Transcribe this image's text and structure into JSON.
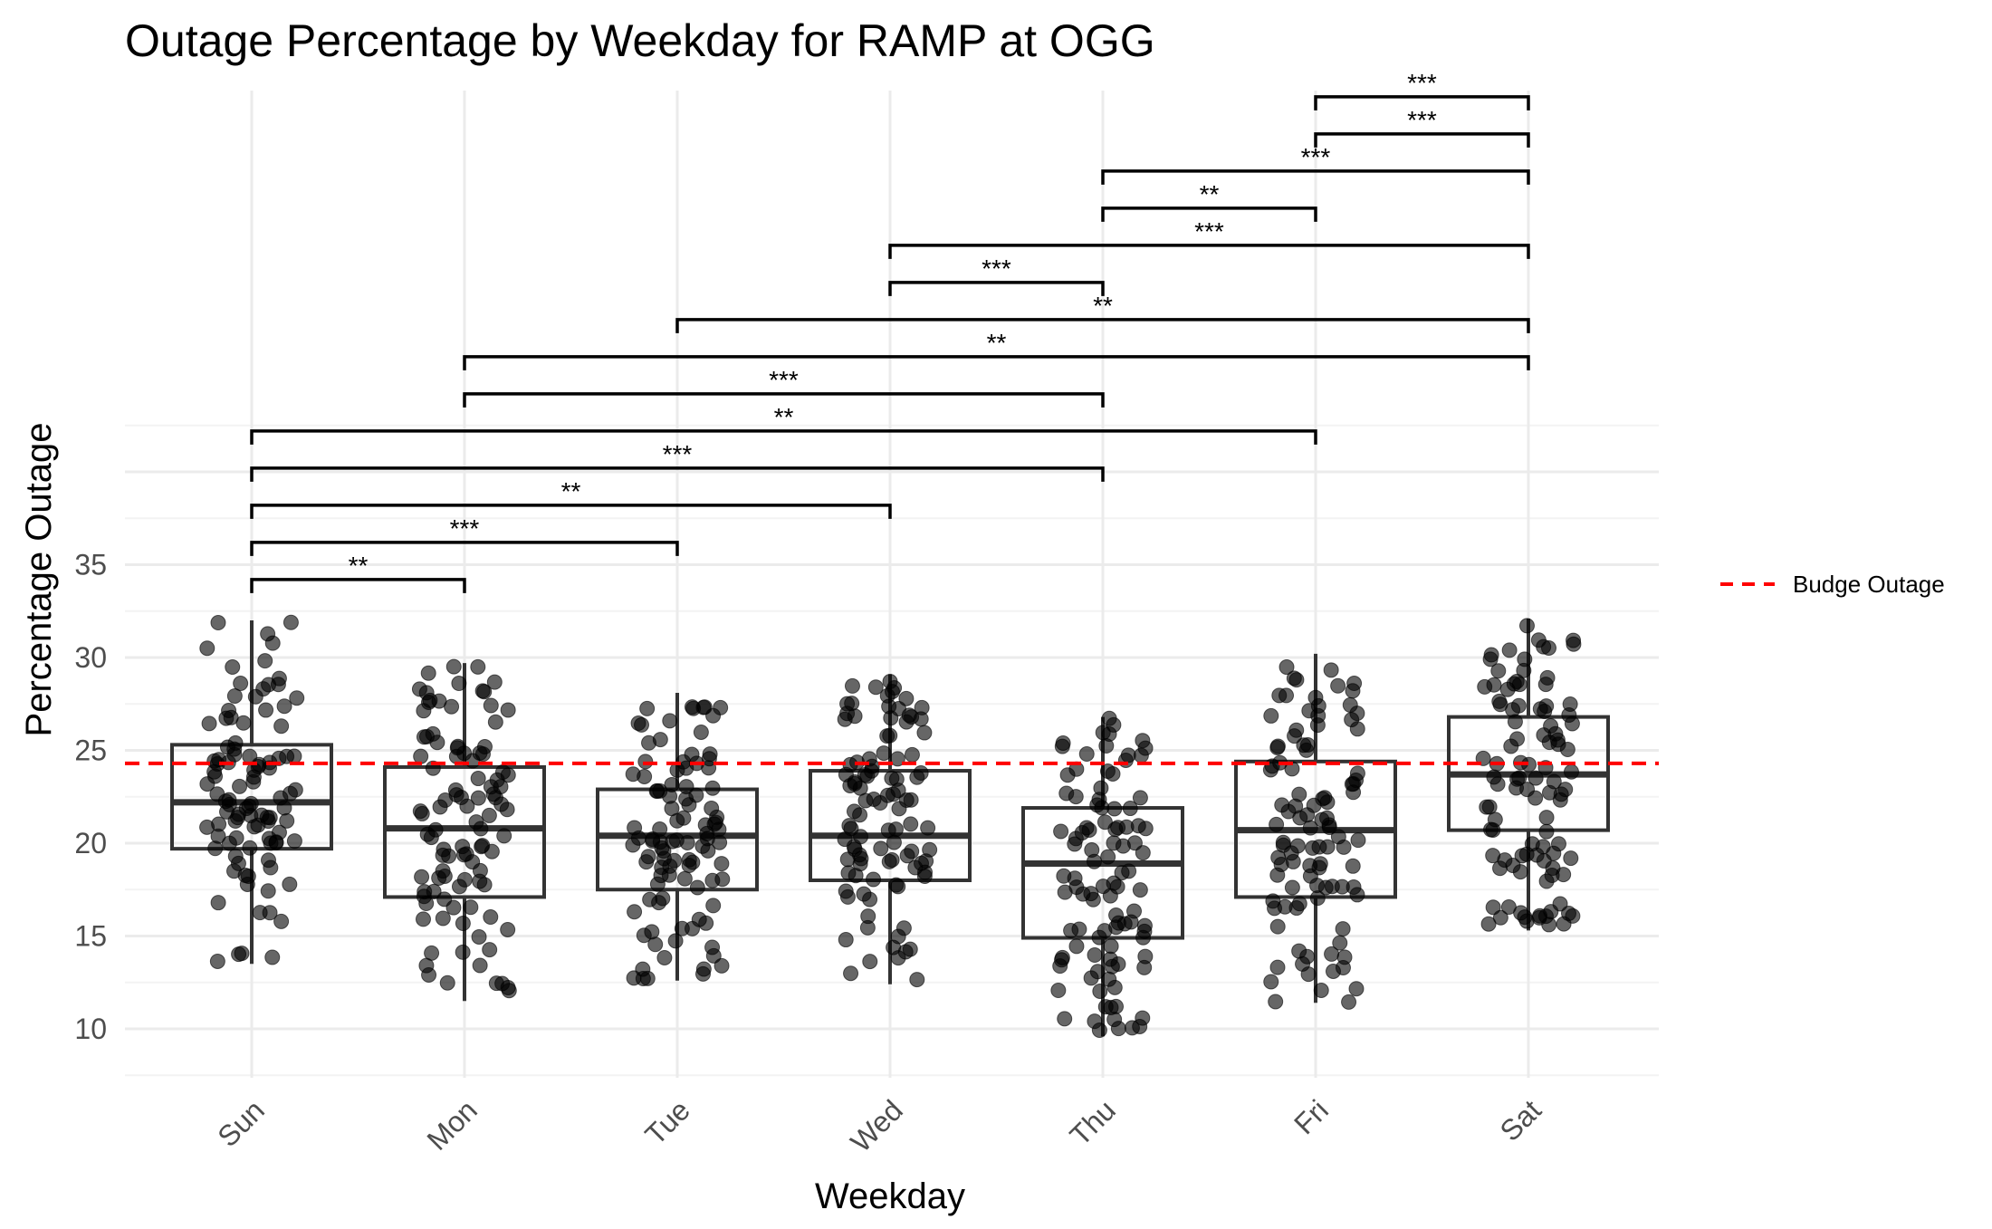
{
  "chart_data": {
    "type": "boxplot",
    "title": "Outage Percentage by Weekday for RAMP at OGG",
    "xlabel": "Weekday",
    "ylabel": "Percentage Outage",
    "categories": [
      "Sun",
      "Mon",
      "Tue",
      "Wed",
      "Thu",
      "Fri",
      "Sat"
    ],
    "y_ticks": [
      10,
      15,
      20,
      25,
      30,
      35
    ],
    "y_range": [
      7.5,
      62
    ],
    "grid": true,
    "boxes": [
      {
        "category": "Sun",
        "min": 13.5,
        "q1": 19.7,
        "median": 22.2,
        "q3": 25.3,
        "max": 32.0
      },
      {
        "category": "Mon",
        "min": 11.5,
        "q1": 17.1,
        "median": 20.8,
        "q3": 24.1,
        "max": 29.7
      },
      {
        "category": "Tue",
        "min": 12.6,
        "q1": 17.5,
        "median": 20.4,
        "q3": 22.9,
        "max": 28.1
      },
      {
        "category": "Wed",
        "min": 12.4,
        "q1": 18.0,
        "median": 20.4,
        "q3": 23.9,
        "max": 29.1
      },
      {
        "category": "Thu",
        "min": 9.6,
        "q1": 14.9,
        "median": 18.9,
        "q3": 21.9,
        "max": 26.8
      },
      {
        "category": "Fri",
        "min": 11.4,
        "q1": 17.1,
        "median": 20.7,
        "q3": 24.4,
        "max": 30.2
      },
      {
        "category": "Sat",
        "min": 15.3,
        "q1": 20.7,
        "median": 23.7,
        "q3": 26.8,
        "max": 32.1
      }
    ],
    "reference_line": {
      "name": "Budge Outage",
      "value": 24.3,
      "color": "#ff0000",
      "style": "dashed"
    },
    "legend": {
      "position": "right",
      "entries": [
        "Budge Outage"
      ]
    },
    "points_per_group": 100,
    "point_color": "#000000",
    "significance": [
      {
        "from": "Sun",
        "to": "Mon",
        "label": "**",
        "y": 34.2
      },
      {
        "from": "Sun",
        "to": "Tue",
        "label": "***",
        "y": 36.2
      },
      {
        "from": "Sun",
        "to": "Wed",
        "label": "**",
        "y": 38.2
      },
      {
        "from": "Sun",
        "to": "Thu",
        "label": "***",
        "y": 40.2
      },
      {
        "from": "Sun",
        "to": "Fri",
        "label": "**",
        "y": 42.2
      },
      {
        "from": "Mon",
        "to": "Thu",
        "label": "***",
        "y": 44.2
      },
      {
        "from": "Mon",
        "to": "Sat",
        "label": "**",
        "y": 46.2
      },
      {
        "from": "Tue",
        "to": "Sat",
        "label": "**",
        "y": 48.2
      },
      {
        "from": "Wed",
        "to": "Thu",
        "label": "***",
        "y": 50.2
      },
      {
        "from": "Wed",
        "to": "Sat",
        "label": "***",
        "y": 52.2
      },
      {
        "from": "Thu",
        "to": "Fri",
        "label": "**",
        "y": 54.2
      },
      {
        "from": "Thu",
        "to": "Sat",
        "label": "***",
        "y": 56.2
      },
      {
        "from": "Fri",
        "to": "Sat",
        "label": "***",
        "y": 58.2
      },
      {
        "from": "Fri",
        "to": "Sat",
        "label": "***",
        "y": 60.2
      }
    ]
  }
}
